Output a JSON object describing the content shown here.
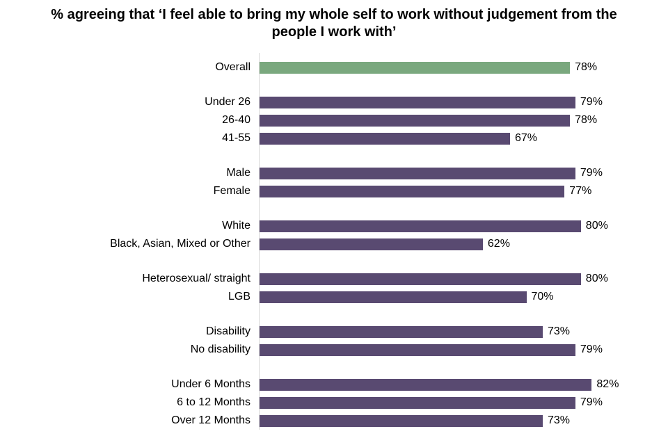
{
  "title": {
    "lines": [
      "% agreeing that ‘I feel able to bring my whole self to work without judgement from the",
      "people I work with’"
    ]
  },
  "chart_data": {
    "type": "bar",
    "orientation": "horizontal",
    "title": "% agreeing that ‘I feel able to bring my whole self to work without judgement from the people I work with’",
    "unit": "%",
    "xlim": [
      21,
      96
    ],
    "grid": false,
    "legend": "none",
    "value_labels": "outside-end",
    "colors": {
      "default_bar": "#594A71",
      "highlight_bar": "#7AA87E",
      "axis_line": "#D9D9D9",
      "text": "#000000"
    },
    "groups": [
      {
        "name": "overall",
        "rows": [
          {
            "label": "Overall",
            "value": 78,
            "value_label": "78%",
            "color": "#7AA87E"
          }
        ]
      },
      {
        "name": "age",
        "rows": [
          {
            "label": "Under 26",
            "value": 79,
            "value_label": "79%"
          },
          {
            "label": "26-40",
            "value": 78,
            "value_label": "78%"
          },
          {
            "label": "41-55",
            "value": 67,
            "value_label": "67%"
          }
        ]
      },
      {
        "name": "gender",
        "rows": [
          {
            "label": "Male",
            "value": 79,
            "value_label": "79%"
          },
          {
            "label": "Female",
            "value": 77,
            "value_label": "77%"
          }
        ]
      },
      {
        "name": "ethnicity",
        "rows": [
          {
            "label": "White",
            "value": 80,
            "value_label": "80%"
          },
          {
            "label": "Black, Asian, Mixed or Other",
            "value": 62,
            "value_label": "62%"
          }
        ]
      },
      {
        "name": "sexual-orientation",
        "rows": [
          {
            "label": "Heterosexual/ straight",
            "value": 80,
            "value_label": "80%"
          },
          {
            "label": "LGB",
            "value": 70,
            "value_label": "70%"
          }
        ]
      },
      {
        "name": "disability",
        "rows": [
          {
            "label": "Disability",
            "value": 73,
            "value_label": "73%"
          },
          {
            "label": "No disability",
            "value": 79,
            "value_label": "79%"
          }
        ]
      },
      {
        "name": "tenure",
        "rows": [
          {
            "label": "Under 6 Months",
            "value": 82,
            "value_label": "82%"
          },
          {
            "label": "6 to 12 Months",
            "value": 79,
            "value_label": "79%"
          },
          {
            "label": "Over 12 Months",
            "value": 73,
            "value_label": "73%"
          }
        ]
      }
    ]
  }
}
